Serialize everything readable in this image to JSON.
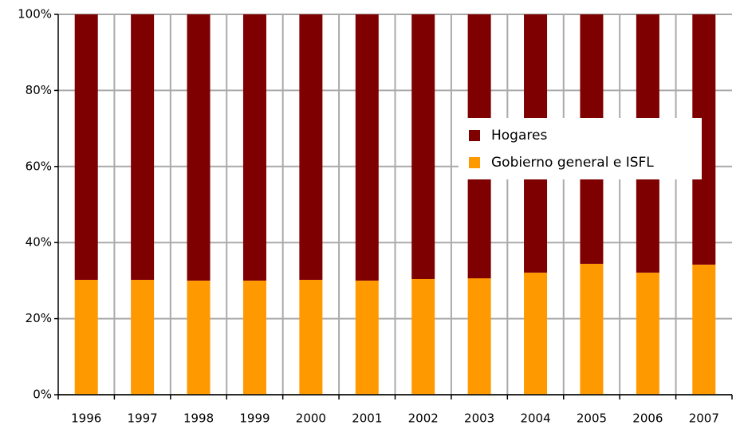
{
  "chart_data": {
    "type": "stacked_bar",
    "categories": [
      "1996",
      "1997",
      "1998",
      "1999",
      "2000",
      "2001",
      "2002",
      "2003",
      "2004",
      "2005",
      "2006",
      "2007"
    ],
    "series": [
      {
        "name": "Hogares",
        "color": "#7f0000",
        "values": [
          69.8,
          69.8,
          70.0,
          70.0,
          69.8,
          70.0,
          69.6,
          69.4,
          67.9,
          65.6,
          67.9,
          65.8
        ]
      },
      {
        "name": "Gobierno general e ISFL",
        "color": "#ff9900",
        "values": [
          30.2,
          30.2,
          30.0,
          30.0,
          30.2,
          30.0,
          30.4,
          30.6,
          32.1,
          34.4,
          32.1,
          34.2
        ]
      }
    ],
    "ylim": [
      0,
      100
    ],
    "yticks": [
      {
        "value": 0,
        "label": "0%"
      },
      {
        "value": 20,
        "label": "20%"
      },
      {
        "value": 40,
        "label": "40%"
      },
      {
        "value": 60,
        "label": "60%"
      },
      {
        "value": 80,
        "label": "80%"
      },
      {
        "value": 100,
        "label": "100%"
      }
    ],
    "grid": true,
    "legend": "right"
  }
}
